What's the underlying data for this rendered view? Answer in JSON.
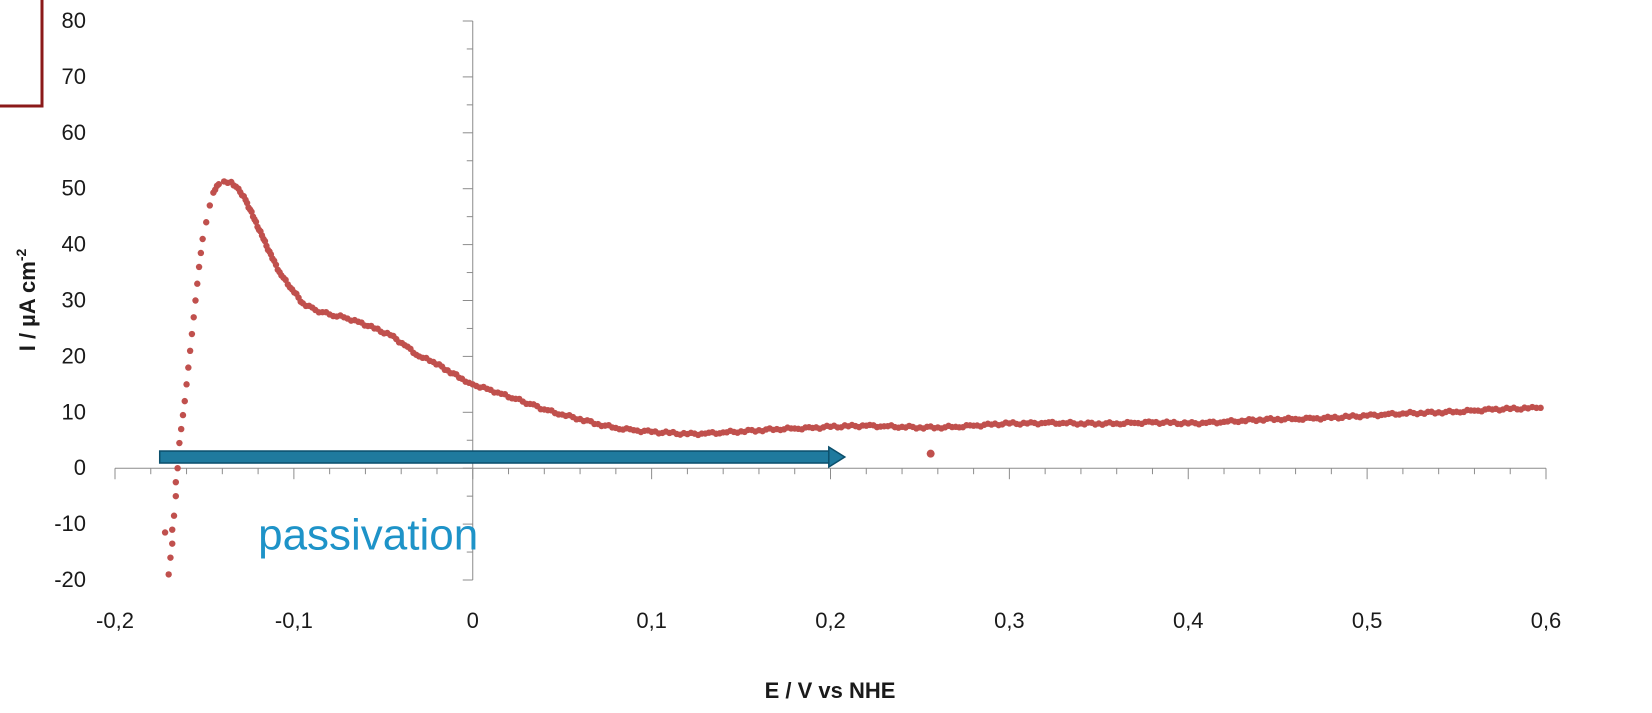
{
  "chart_data": {
    "type": "scatter",
    "title": "",
    "xlabel": "E / V vs NHE",
    "ylabel_main": "I / µA cm",
    "ylabel_sup": "-2",
    "xlim": [
      -0.2,
      0.6
    ],
    "ylim": [
      -20,
      80
    ],
    "x_ticks": [
      "-0,2",
      "-0,1",
      "0",
      "0,1",
      "0,2",
      "0,3",
      "0,4",
      "0,5",
      "0,6"
    ],
    "y_ticks": [
      "-20",
      "-10",
      "0",
      "10",
      "20",
      "30",
      "40",
      "50",
      "60",
      "70",
      "80"
    ],
    "grid": false,
    "legend": "none",
    "colors": {
      "series": "#C0504D",
      "arrow": "#1F7A9E",
      "arrow_edge": "#0B4F6C",
      "annotation": "#1E93C8",
      "frame": "#8B1A1A"
    },
    "series": [
      {
        "points": [
          [
            -0.17,
            -19
          ],
          [
            -0.169,
            -16
          ],
          [
            -0.168,
            -13.5
          ],
          [
            -0.168,
            -11
          ],
          [
            -0.172,
            -11.5
          ],
          [
            -0.167,
            -8.5
          ],
          [
            -0.166,
            -5
          ],
          [
            -0.166,
            -2.5
          ],
          [
            -0.165,
            0
          ],
          [
            -0.165,
            2
          ],
          [
            -0.164,
            4.5
          ],
          [
            -0.163,
            7
          ],
          [
            -0.162,
            9.5
          ],
          [
            -0.161,
            12
          ],
          [
            -0.16,
            15
          ],
          [
            -0.159,
            18
          ],
          [
            -0.158,
            21
          ],
          [
            -0.157,
            24
          ],
          [
            -0.156,
            27
          ],
          [
            -0.155,
            30
          ],
          [
            -0.154,
            33
          ],
          [
            -0.153,
            36
          ],
          [
            -0.152,
            38.5
          ],
          [
            -0.151,
            41
          ],
          [
            -0.149,
            44
          ],
          [
            -0.147,
            47
          ],
          [
            -0.145,
            49.3
          ],
          [
            -0.142,
            50.8
          ],
          [
            -0.139,
            51.3
          ],
          [
            -0.135,
            51.2
          ],
          [
            -0.131,
            50
          ],
          [
            -0.127,
            48
          ],
          [
            -0.122,
            44.5
          ],
          [
            -0.117,
            41
          ],
          [
            -0.112,
            37.5
          ],
          [
            -0.107,
            34.5
          ],
          [
            -0.101,
            32
          ],
          [
            -0.095,
            29.5
          ],
          [
            -0.088,
            28.3
          ],
          [
            -0.08,
            27.5
          ],
          [
            -0.072,
            27
          ],
          [
            -0.064,
            26.2
          ],
          [
            -0.055,
            25
          ],
          [
            -0.046,
            23.8
          ],
          [
            -0.038,
            22
          ],
          [
            -0.03,
            20
          ],
          [
            -0.022,
            19
          ],
          [
            -0.014,
            17.5
          ],
          [
            -0.006,
            16
          ],
          [
            0.0,
            15
          ],
          [
            0.008,
            14.2
          ],
          [
            0.016,
            13.3
          ],
          [
            0.024,
            12.4
          ],
          [
            0.032,
            11.5
          ],
          [
            0.04,
            10.5
          ],
          [
            0.05,
            9.6
          ],
          [
            0.06,
            8.8
          ],
          [
            0.07,
            7.9
          ],
          [
            0.08,
            7.2
          ],
          [
            0.09,
            6.8
          ],
          [
            0.1,
            6.5
          ],
          [
            0.11,
            6.3
          ],
          [
            0.12,
            6.1
          ],
          [
            0.13,
            6.2
          ],
          [
            0.14,
            6.4
          ],
          [
            0.15,
            6.6
          ],
          [
            0.16,
            6.8
          ],
          [
            0.17,
            7.0
          ],
          [
            0.18,
            7.1
          ],
          [
            0.19,
            7.2
          ],
          [
            0.2,
            7.4
          ],
          [
            0.21,
            7.5
          ],
          [
            0.22,
            7.6
          ],
          [
            0.23,
            7.5
          ],
          [
            0.24,
            7.4
          ],
          [
            0.25,
            7.3
          ],
          [
            0.26,
            7.3
          ],
          [
            0.27,
            7.4
          ],
          [
            0.28,
            7.6
          ],
          [
            0.29,
            7.8
          ],
          [
            0.3,
            8.0
          ],
          [
            0.31,
            8.0
          ],
          [
            0.32,
            8.1
          ],
          [
            0.33,
            8.1
          ],
          [
            0.34,
            8.0
          ],
          [
            0.35,
            8.0
          ],
          [
            0.36,
            8.0
          ],
          [
            0.37,
            8.1
          ],
          [
            0.38,
            8.2
          ],
          [
            0.39,
            8.1
          ],
          [
            0.4,
            8.0
          ],
          [
            0.41,
            8.1
          ],
          [
            0.42,
            8.3
          ],
          [
            0.43,
            8.5
          ],
          [
            0.44,
            8.7
          ],
          [
            0.45,
            8.8
          ],
          [
            0.46,
            8.8
          ],
          [
            0.47,
            8.9
          ],
          [
            0.48,
            9.0
          ],
          [
            0.49,
            9.2
          ],
          [
            0.5,
            9.4
          ],
          [
            0.51,
            9.6
          ],
          [
            0.52,
            9.8
          ],
          [
            0.53,
            9.9
          ],
          [
            0.54,
            10.0
          ],
          [
            0.55,
            10.1
          ],
          [
            0.56,
            10.3
          ],
          [
            0.57,
            10.5
          ],
          [
            0.58,
            10.6
          ],
          [
            0.59,
            10.7
          ],
          [
            0.597,
            10.8
          ],
          [
            0.256,
            2.6
          ]
        ]
      }
    ],
    "annotations": [
      {
        "text": "passivation",
        "x": -0.12,
        "y": -14.5
      }
    ],
    "arrow": {
      "x_start": -0.175,
      "x_end": 0.208,
      "y": 2
    }
  }
}
